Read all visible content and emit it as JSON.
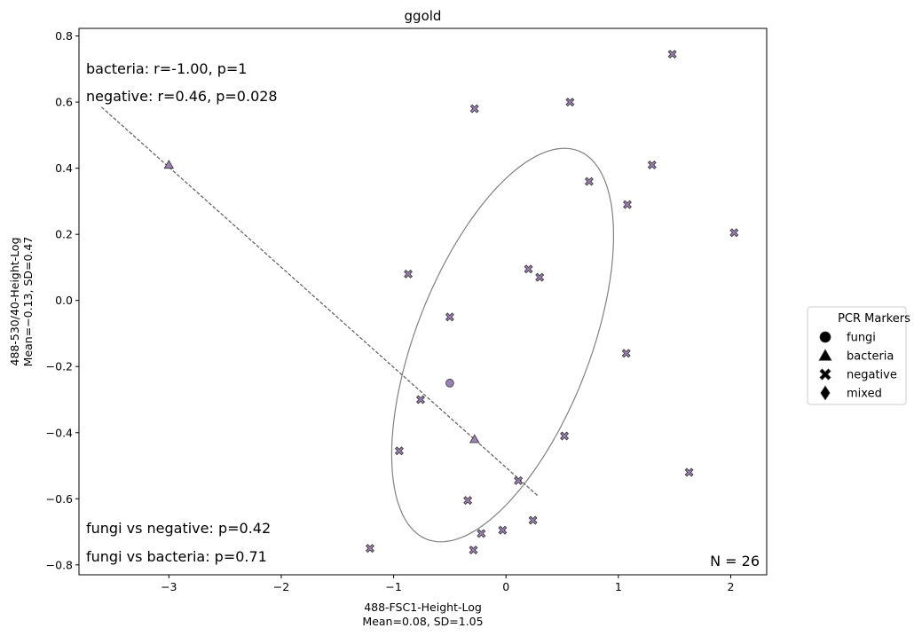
{
  "chart_data": {
    "type": "scatter",
    "title": "ggold",
    "xlabel_lines": [
      "488-FSC1-Height-Log",
      "Mean=0.08, SD=1.05"
    ],
    "ylabel_lines": [
      "488-530/40-Height-Log",
      "Mean=−0.13, SD=0.47"
    ],
    "xlim": [
      -3.8,
      2.32
    ],
    "ylim": [
      -0.83,
      0.823
    ],
    "x_ticks": [
      -3,
      -2,
      -1,
      0,
      1,
      2
    ],
    "x_tick_labels": [
      "−3",
      "−2",
      "−1",
      "0",
      "1",
      "2"
    ],
    "y_ticks": [
      -0.8,
      -0.6,
      -0.4,
      -0.2,
      0.0,
      0.2,
      0.4,
      0.6,
      0.8
    ],
    "y_tick_labels": [
      "−0.8",
      "−0.6",
      "−0.4",
      "−0.2",
      "0.0",
      "0.2",
      "0.4",
      "0.6",
      "0.8"
    ],
    "grid": false,
    "marker_color": "#9b7fb0",
    "series": [
      {
        "name": "fungi",
        "marker": "circle",
        "points": [
          [
            -0.5,
            -0.25
          ]
        ]
      },
      {
        "name": "bacteria",
        "marker": "triangle",
        "points": [
          [
            -3.0,
            0.41
          ],
          [
            -0.28,
            -0.42
          ]
        ]
      },
      {
        "name": "negative",
        "marker": "x",
        "points": [
          [
            1.48,
            0.745
          ],
          [
            -0.28,
            0.58
          ],
          [
            0.57,
            0.6
          ],
          [
            1.3,
            0.41
          ],
          [
            0.74,
            0.36
          ],
          [
            1.08,
            0.29
          ],
          [
            2.03,
            0.205
          ],
          [
            0.2,
            0.095
          ],
          [
            -0.87,
            0.08
          ],
          [
            0.3,
            0.07
          ],
          [
            -0.5,
            -0.05
          ],
          [
            1.07,
            -0.16
          ],
          [
            -0.76,
            -0.3
          ],
          [
            0.52,
            -0.41
          ],
          [
            -0.95,
            -0.455
          ],
          [
            0.11,
            -0.545
          ],
          [
            1.63,
            -0.52
          ],
          [
            -0.34,
            -0.605
          ],
          [
            0.24,
            -0.665
          ],
          [
            -0.03,
            -0.695
          ],
          [
            -0.22,
            -0.705
          ],
          [
            -1.21,
            -0.75
          ],
          [
            -0.29,
            -0.755
          ]
        ]
      },
      {
        "name": "mixed",
        "marker": "diamond",
        "points": []
      }
    ],
    "regression_line": {
      "series": "bacteria",
      "x": [
        -3.6,
        0.28
      ],
      "y": [
        0.585,
        -0.59
      ]
    },
    "ellipse": {
      "center": [
        -0.03,
        -0.135
      ],
      "rx": 0.69,
      "ry": 0.5,
      "angle_deg": 67
    },
    "annotations": {
      "bacteria_corr": "bacteria: r=-1.00, p=1",
      "negative_corr": "negative: r=0.46, p=0.028",
      "fungi_vs_negative": "fungi vs negative: p=0.42",
      "fungi_vs_bacteria": "fungi vs bacteria: p=0.71",
      "n_label": "N = 26"
    },
    "legend": {
      "title": "PCR Markers",
      "placement": "right",
      "entries": [
        {
          "label": "fungi",
          "marker": "circle"
        },
        {
          "label": "bacteria",
          "marker": "triangle"
        },
        {
          "label": "negative",
          "marker": "x"
        },
        {
          "label": "mixed",
          "marker": "diamond"
        }
      ]
    }
  }
}
